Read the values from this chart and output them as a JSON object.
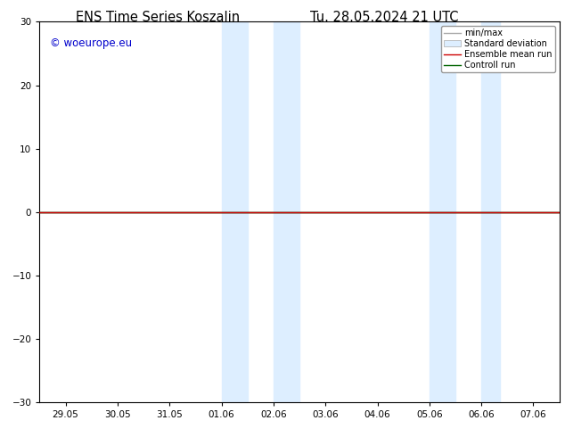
{
  "title_left": "ENS Time Series Koszalin",
  "title_right": "Tu. 28.05.2024 21 UTC",
  "title_fontsize": 10.5,
  "watermark": "© woeurope.eu",
  "watermark_color": "#0000cc",
  "ylim": [
    -30,
    30
  ],
  "yticks": [
    -30,
    -20,
    -10,
    0,
    10,
    20,
    30
  ],
  "xtick_labels": [
    "29.05",
    "30.05",
    "31.05",
    "01.06",
    "02.06",
    "03.06",
    "04.06",
    "05.06",
    "06.06",
    "07.06"
  ],
  "xtick_positions": [
    0,
    1,
    2,
    3,
    4,
    5,
    6,
    7,
    8,
    9
  ],
  "shade_regions": [
    {
      "x_start": 3.0,
      "x_end": 3.5,
      "color": "#ddeeff"
    },
    {
      "x_start": 4.0,
      "x_end": 4.5,
      "color": "#ddeeff"
    },
    {
      "x_start": 7.0,
      "x_end": 7.5,
      "color": "#ddeeff"
    },
    {
      "x_start": 8.0,
      "x_end": 8.35,
      "color": "#ddeeff"
    }
  ],
  "zero_line_y": 0,
  "control_run_color": "#006400",
  "ensemble_mean_color": "#cc0000",
  "background_color": "#ffffff",
  "plot_bg_color": "#ffffff",
  "border_color": "#000000",
  "font_family": "DejaVu Sans",
  "shade_color": "#ddeeff"
}
